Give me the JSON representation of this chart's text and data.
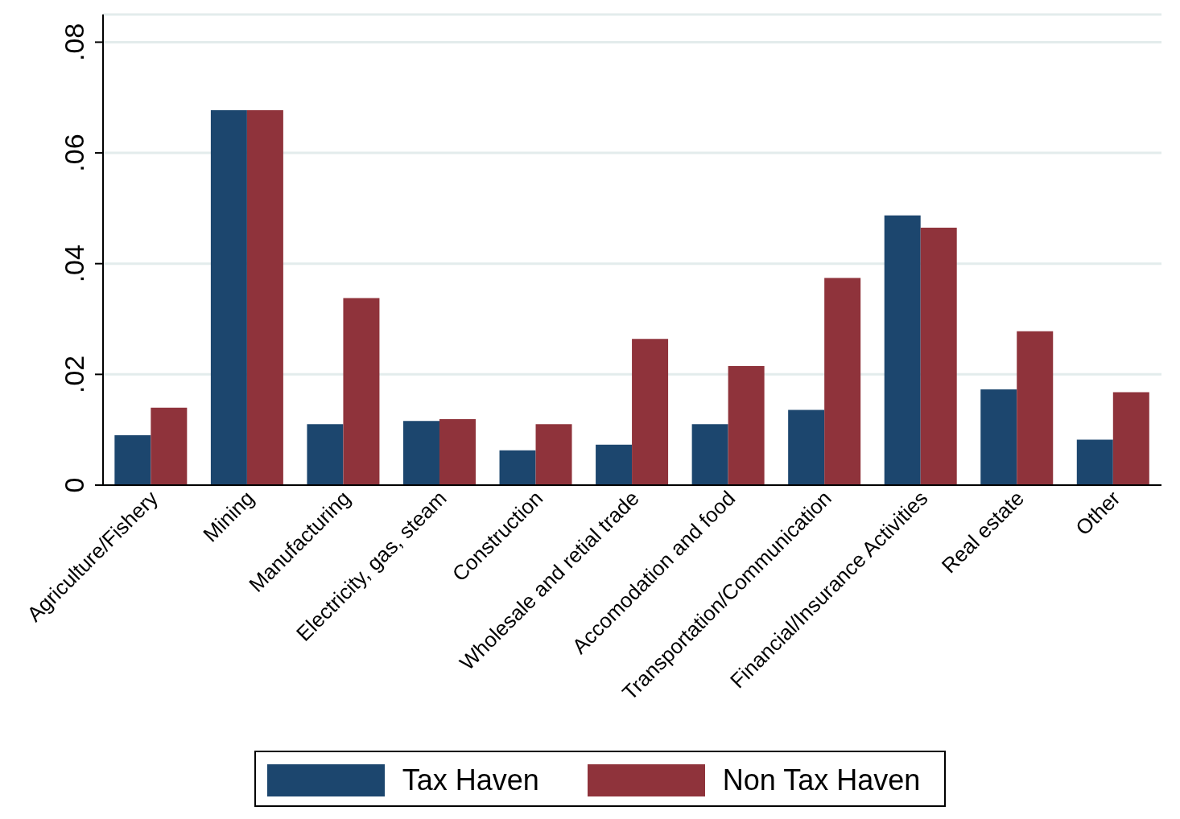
{
  "chart_data": {
    "type": "bar",
    "categories": [
      "Agriculture/Fishery",
      "Mining",
      "Manufacturing",
      "Electricity, gas, steam",
      "Construction",
      "Wholesale and retial trade",
      "Accomodation and food",
      "Transportation/Communication",
      "Financial/Insurance Activities",
      "Real estate",
      "Other"
    ],
    "series": [
      {
        "name": "Tax Haven",
        "color": "#1c466e",
        "values": [
          0.009,
          0.0677,
          0.011,
          0.0116,
          0.0063,
          0.0073,
          0.011,
          0.0136,
          0.0487,
          0.0173,
          0.0082
        ]
      },
      {
        "name": "Non Tax Haven",
        "color": "#8f333b",
        "values": [
          0.014,
          0.0677,
          0.0338,
          0.0119,
          0.011,
          0.0264,
          0.0215,
          0.0374,
          0.0465,
          0.0278,
          0.0168
        ]
      }
    ],
    "ylim": [
      0,
      0.085
    ],
    "yticks": [
      {
        "value": 0,
        "label": "0"
      },
      {
        "value": 0.02,
        "label": ".02"
      },
      {
        "value": 0.04,
        "label": ".04"
      },
      {
        "value": 0.06,
        "label": ".06"
      },
      {
        "value": 0.08,
        "label": ".08"
      }
    ],
    "grid": "y",
    "legend": "bottom"
  }
}
